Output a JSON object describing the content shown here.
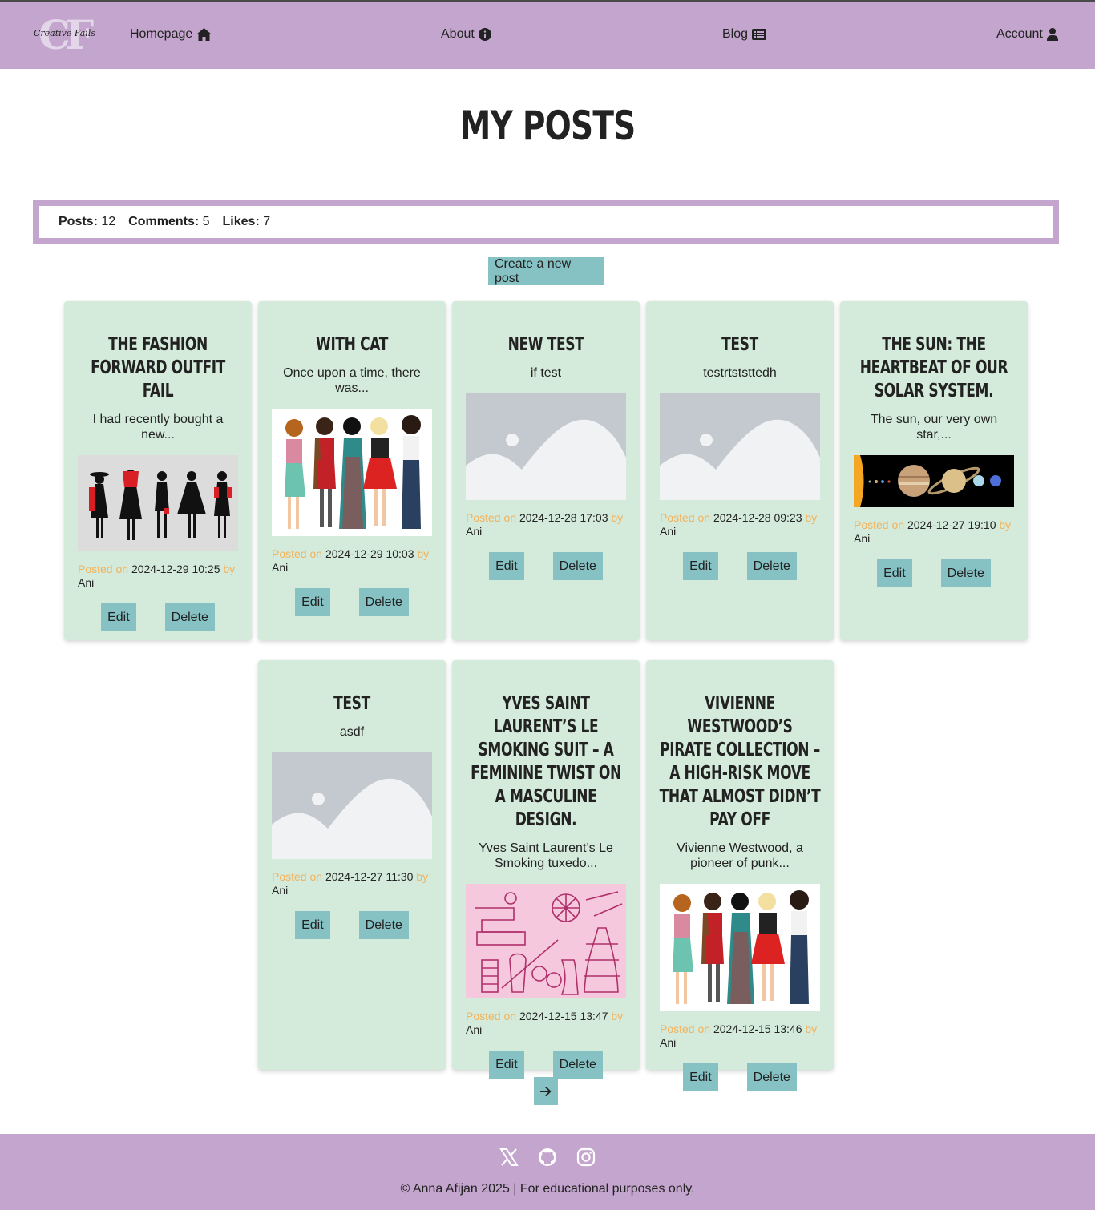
{
  "nav": {
    "logo_letters": "CF",
    "logo_script": "Creative Fails",
    "home": "Homepage",
    "about": "About",
    "blog": "Blog",
    "account": "Account"
  },
  "page": {
    "title": "My Posts"
  },
  "stats": {
    "posts_label": "Posts:",
    "posts_value": "12",
    "comments_label": "Comments:",
    "comments_value": "5",
    "likes_label": "Likes:",
    "likes_value": "7"
  },
  "create_label": "Create a new post",
  "labels": {
    "posted_on": "Posted on",
    "by": "by",
    "edit": "Edit",
    "delete": "Delete"
  },
  "posts": [
    {
      "title": "The fashion forward outfit fail",
      "excerpt": "I had recently bought a new...",
      "date": "2024-12-29 10:25",
      "author": "Ani",
      "image": "fashion-sketch"
    },
    {
      "title": "with cat",
      "excerpt": "Once upon a time, there was...",
      "date": "2024-12-29 10:03",
      "author": "Ani",
      "image": "women-group"
    },
    {
      "title": "new test",
      "excerpt": "if test",
      "date": "2024-12-28 17:03",
      "author": "Ani",
      "image": "placeholder"
    },
    {
      "title": "test",
      "excerpt": "testrtststtedh",
      "date": "2024-12-28 09:23",
      "author": "Ani",
      "image": "placeholder"
    },
    {
      "title": "The Sun: The Heartbeat of Our Solar System.",
      "excerpt": "The sun, our very own star,...",
      "date": "2024-12-27 19:10",
      "author": "Ani",
      "image": "solar-system"
    },
    {
      "title": "test",
      "excerpt": "asdf",
      "date": "2024-12-27 11:30",
      "author": "Ani",
      "image": "placeholder"
    },
    {
      "title": "Yves Saint Laurent’s Le Smoking Suit – A Feminine Twist on a Masculine Design.",
      "excerpt": "Yves Saint Laurent’s Le Smoking tuxedo...",
      "date": "2024-12-15 13:47",
      "author": "Ani",
      "image": "sewing-pink"
    },
    {
      "title": "Vivienne Westwood’s Pirate Collection – A High-Risk Move That Almost Didn’t Pay Off",
      "excerpt": "Vivienne Westwood, a pioneer of punk...",
      "date": "2024-12-15 13:46",
      "author": "Ani",
      "image": "women-group"
    }
  ],
  "footer": {
    "copyright": "© Anna Afijan 2025 | For educational purposes only."
  }
}
